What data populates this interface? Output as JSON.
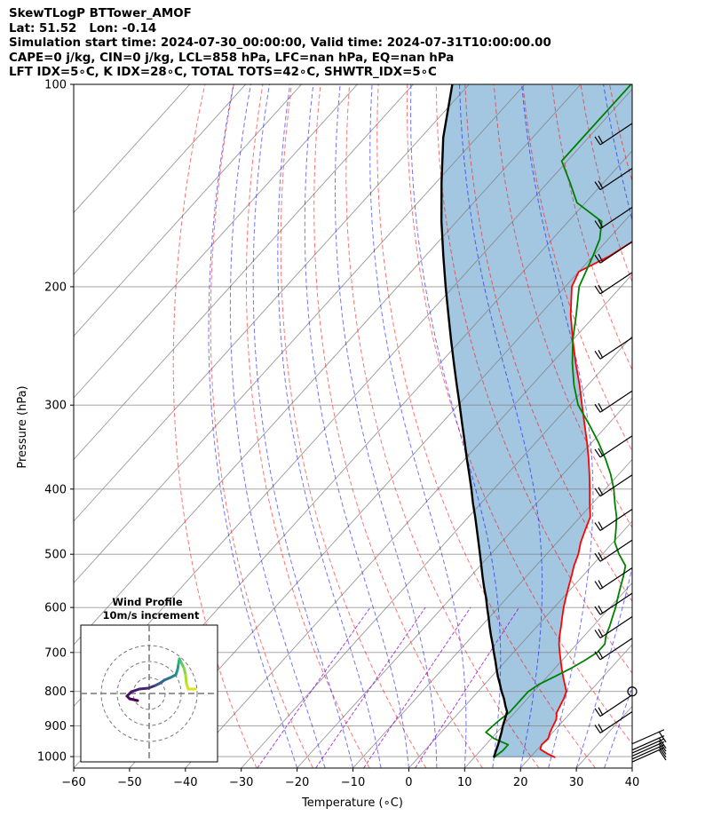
{
  "header": {
    "lines": [
      "SkewTLogP BTTower_AMOF",
      "Lat: 51.52   Lon: -0.14",
      "Simulation start time: 2024-07-30_00:00:00, Valid time: 2024-07-31T10:00:00.00",
      "CAPE=0 j/kg, CIN=0 j/kg, LCL=858 hPa, LFC=nan hPa, EQ=nan hPa",
      "LFT IDX=5∘C, K IDX=28∘C, TOTAL TOTS=42∘C, SHWTR_IDX=5∘C"
    ]
  },
  "colors": {
    "temperature": "#ff0000",
    "dewpoint": "#008000",
    "parcel": "#000000",
    "shading": "#7fb1d6",
    "dry_adiabat": "#ff0000",
    "moist_adiabat": "#0000ff",
    "mixing_ratio": "#9400d3",
    "isotherm": "#808080"
  },
  "chart_data": {
    "type": "skew-t log-p",
    "xlabel": "Temperature (∘C)",
    "ylabel": "Pressure (hPa)",
    "xlim": [
      -60,
      40
    ],
    "ylim": [
      1040,
      100
    ],
    "x_ticks": [
      "−60",
      "−50",
      "−40",
      "−30",
      "−20",
      "−10",
      "0",
      "10",
      "20",
      "30",
      "40"
    ],
    "y_ticks": [
      "100",
      "200",
      "300",
      "400",
      "500",
      "600",
      "700",
      "800",
      "900",
      "1000"
    ],
    "grid": true,
    "series": [],
    "temperature": [
      [
        1003,
        24.5
      ],
      [
        990,
        22.5
      ],
      [
        975,
        20.5
      ],
      [
        960,
        20
      ],
      [
        940,
        20.2
      ],
      [
        920,
        19.5
      ],
      [
        900,
        19
      ],
      [
        880,
        18.5
      ],
      [
        860,
        17.5
      ],
      [
        840,
        17
      ],
      [
        820,
        16.5
      ],
      [
        800,
        15.8
      ],
      [
        780,
        14.3
      ],
      [
        760,
        12.8
      ],
      [
        740,
        11.3
      ],
      [
        720,
        9.8
      ],
      [
        700,
        8.3
      ],
      [
        680,
        6.8
      ],
      [
        660,
        5.5
      ],
      [
        640,
        4.3
      ],
      [
        620,
        3
      ],
      [
        600,
        1.7
      ],
      [
        580,
        0.5
      ],
      [
        560,
        -0.7
      ],
      [
        540,
        -1.9
      ],
      [
        520,
        -3.2
      ],
      [
        500,
        -4.3
      ],
      [
        480,
        -5.8
      ],
      [
        460,
        -7
      ],
      [
        440,
        -8.2
      ],
      [
        420,
        -10.5
      ],
      [
        400,
        -12.8
      ],
      [
        380,
        -15.3
      ],
      [
        360,
        -18
      ],
      [
        340,
        -21
      ],
      [
        320,
        -24.3
      ],
      [
        300,
        -27.8
      ],
      [
        280,
        -31.5
      ],
      [
        260,
        -35.7
      ],
      [
        240,
        -40
      ],
      [
        220,
        -44.5
      ],
      [
        200,
        -48.8
      ],
      [
        190,
        -50
      ],
      [
        180,
        -47
      ],
      [
        170,
        -45
      ],
      [
        160,
        -43
      ],
      [
        150,
        -41
      ],
      [
        140,
        -40
      ],
      [
        130,
        -39
      ],
      [
        120,
        -39
      ],
      [
        110,
        -39
      ],
      [
        100,
        -38.5
      ]
    ],
    "dewpoint": [
      [
        1003,
        13.5
      ],
      [
        980,
        14
      ],
      [
        960,
        14
      ],
      [
        940,
        10.5
      ],
      [
        920,
        8
      ],
      [
        900,
        8.2
      ],
      [
        880,
        8.5
      ],
      [
        860,
        9
      ],
      [
        840,
        9
      ],
      [
        820,
        9
      ],
      [
        800,
        9
      ],
      [
        780,
        9.8
      ],
      [
        760,
        11.3
      ],
      [
        740,
        12.8
      ],
      [
        720,
        14
      ],
      [
        700,
        15
      ],
      [
        680,
        15
      ],
      [
        660,
        13.8
      ],
      [
        640,
        13
      ],
      [
        620,
        12
      ],
      [
        600,
        11
      ],
      [
        580,
        9.8
      ],
      [
        560,
        8.6
      ],
      [
        540,
        7.4
      ],
      [
        520,
        6
      ],
      [
        500,
        3
      ],
      [
        480,
        0.3
      ],
      [
        460,
        -1.5
      ],
      [
        440,
        -3.5
      ],
      [
        420,
        -6
      ],
      [
        400,
        -8.5
      ],
      [
        380,
        -11.5
      ],
      [
        360,
        -15
      ],
      [
        340,
        -19
      ],
      [
        320,
        -23.5
      ],
      [
        300,
        -28.5
      ],
      [
        280,
        -32.5
      ],
      [
        260,
        -36.3
      ],
      [
        240,
        -40
      ],
      [
        220,
        -43.5
      ],
      [
        200,
        -47.5
      ],
      [
        180,
        -50
      ],
      [
        170,
        -51.5
      ],
      [
        160,
        -54
      ],
      [
        150,
        -61.5
      ],
      [
        140,
        -66
      ],
      [
        130,
        -71
      ],
      [
        120,
        -71
      ],
      [
        110,
        -71
      ],
      [
        100,
        -71
      ]
    ],
    "parcel": [
      [
        1003,
        13.5
      ],
      [
        980,
        12.8
      ],
      [
        960,
        12.2
      ],
      [
        940,
        11.5
      ],
      [
        920,
        10.8
      ],
      [
        900,
        10
      ],
      [
        880,
        9.3
      ],
      [
        858,
        8.5
      ],
      [
        840,
        7.2
      ],
      [
        820,
        5.8
      ],
      [
        800,
        4.2
      ],
      [
        780,
        2.7
      ],
      [
        760,
        1.1
      ],
      [
        740,
        -0.4
      ],
      [
        720,
        -1.9
      ],
      [
        700,
        -3.5
      ],
      [
        680,
        -5.1
      ],
      [
        660,
        -6.8
      ],
      [
        640,
        -8.5
      ],
      [
        620,
        -10.2
      ],
      [
        600,
        -12
      ],
      [
        580,
        -13.8
      ],
      [
        560,
        -15.8
      ],
      [
        540,
        -17.8
      ],
      [
        520,
        -19.8
      ],
      [
        500,
        -21.9
      ],
      [
        480,
        -24.1
      ],
      [
        460,
        -26.4
      ],
      [
        440,
        -28.8
      ],
      [
        420,
        -31.4
      ],
      [
        400,
        -34
      ],
      [
        380,
        -36.8
      ],
      [
        360,
        -39.8
      ],
      [
        340,
        -42.9
      ],
      [
        320,
        -46.2
      ],
      [
        300,
        -49.7
      ],
      [
        280,
        -53.5
      ],
      [
        260,
        -57.5
      ],
      [
        240,
        -61.8
      ],
      [
        220,
        -66.4
      ],
      [
        200,
        -71.4
      ],
      [
        180,
        -76.8
      ],
      [
        160,
        -82.7
      ],
      [
        140,
        -89
      ],
      [
        120,
        -96
      ],
      [
        100,
        -103
      ]
    ],
    "wind_barb_pressures": [
      1000,
      990,
      980,
      970,
      960,
      940,
      900,
      850,
      800,
      700,
      650,
      600,
      550,
      500,
      450,
      400,
      350,
      300,
      250,
      200,
      180,
      160,
      140,
      120
    ],
    "inset": {
      "title": "Wind Profile",
      "subtitle": "10m/s increment"
    }
  }
}
